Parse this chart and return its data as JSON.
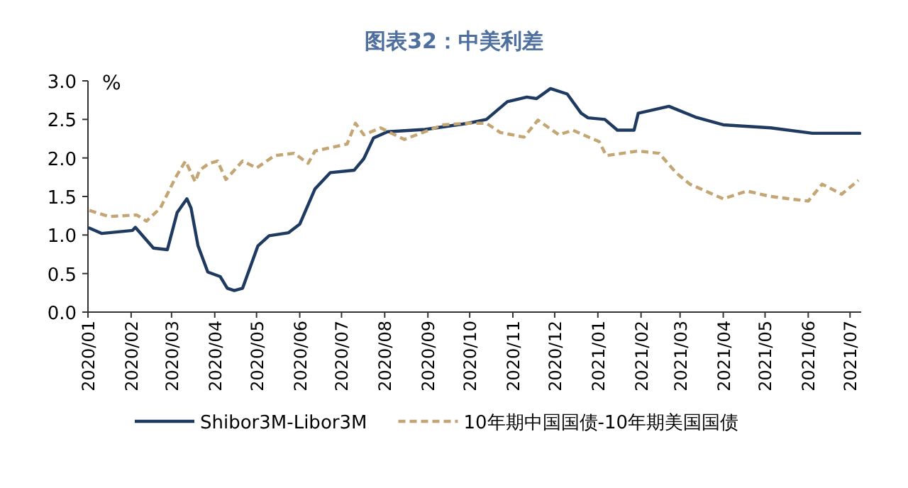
{
  "chart_data": {
    "type": "line",
    "title": "图表32：中美利差",
    "ylabel": "%",
    "legend": "bottom",
    "xlim": [
      "2020-01-01",
      "2021-07-09"
    ],
    "ylim": [
      0,
      3
    ],
    "yticks": [
      {
        "value": 0,
        "label": "0.0"
      },
      {
        "value": 0.5,
        "label": "0.5"
      },
      {
        "value": 1,
        "label": "1.0"
      },
      {
        "value": 1.5,
        "label": "1.5"
      },
      {
        "value": 2,
        "label": "2.0"
      },
      {
        "value": 2.5,
        "label": "2.5"
      },
      {
        "value": 3,
        "label": "3.0"
      }
    ],
    "xticks": [
      {
        "value": "2020-01",
        "label": "2020/01"
      },
      {
        "value": "2020-02",
        "label": "2020/02"
      },
      {
        "value": "2020-03",
        "label": "2020/03"
      },
      {
        "value": "2020-04",
        "label": "2020/04"
      },
      {
        "value": "2020-05",
        "label": "2020/05"
      },
      {
        "value": "2020-06",
        "label": "2020/06"
      },
      {
        "value": "2020-07",
        "label": "2020/07"
      },
      {
        "value": "2020-08",
        "label": "2020/08"
      },
      {
        "value": "2020-09",
        "label": "2020/09"
      },
      {
        "value": "2020-10",
        "label": "2020/10"
      },
      {
        "value": "2020-11",
        "label": "2020/11"
      },
      {
        "value": "2020-12",
        "label": "2020/12"
      },
      {
        "value": "2021-01",
        "label": "2021/01"
      },
      {
        "value": "2021-02",
        "label": "2021/02"
      },
      {
        "value": "2021-03",
        "label": "2021/03"
      },
      {
        "value": "2021-04",
        "label": "2021/04"
      },
      {
        "value": "2021-05",
        "label": "2021/05"
      },
      {
        "value": "2021-06",
        "label": "2021/06"
      },
      {
        "value": "2021-07",
        "label": "2021/07"
      }
    ],
    "series": [
      {
        "name": "Shibor3M-Libor3M",
        "color": "#1f3a60",
        "line_style": "solid",
        "x": [
          "2020-01-02",
          "2020-01-11",
          "2020-02-02",
          "2020-02-04",
          "2020-02-17",
          "2020-02-27",
          "2020-03-05",
          "2020-03-12",
          "2020-03-15",
          "2020-03-20",
          "2020-03-27",
          "2020-04-05",
          "2020-04-10",
          "2020-04-15",
          "2020-04-21",
          "2020-05-02",
          "2020-05-10",
          "2020-05-24",
          "2020-06-01",
          "2020-06-12",
          "2020-06-23",
          "2020-07-10",
          "2020-07-17",
          "2020-07-24",
          "2020-08-03",
          "2020-08-30",
          "2020-09-30",
          "2020-10-13",
          "2020-10-28",
          "2020-11-11",
          "2020-11-18",
          "2020-11-28",
          "2020-12-10",
          "2020-12-20",
          "2020-12-25",
          "2021-01-06",
          "2021-01-15",
          "2021-01-27",
          "2021-01-30",
          "2021-02-21",
          "2021-03-12",
          "2021-04-01",
          "2021-05-05",
          "2021-06-04",
          "2021-07-08"
        ],
        "values": [
          1.09,
          1.02,
          1.06,
          1.1,
          0.83,
          0.81,
          1.29,
          1.47,
          1.35,
          0.86,
          0.52,
          0.46,
          0.31,
          0.28,
          0.31,
          0.86,
          0.99,
          1.03,
          1.14,
          1.6,
          1.81,
          1.84,
          1.99,
          2.26,
          2.34,
          2.37,
          2.45,
          2.5,
          2.73,
          2.79,
          2.77,
          2.9,
          2.83,
          2.58,
          2.52,
          2.5,
          2.36,
          2.36,
          2.58,
          2.67,
          2.53,
          2.43,
          2.39,
          2.32,
          2.32
        ]
      },
      {
        "name": "10年期中国国债-10年期美国国债",
        "color": "#c4a574",
        "line_style": "dashed",
        "x": [
          "2020-01-02",
          "2020-01-16",
          "2020-02-05",
          "2020-02-12",
          "2020-02-22",
          "2020-03-04",
          "2020-03-11",
          "2020-03-18",
          "2020-03-21",
          "2020-03-28",
          "2020-04-03",
          "2020-04-09",
          "2020-04-21",
          "2020-05-01",
          "2020-05-14",
          "2020-05-28",
          "2020-06-07",
          "2020-06-12",
          "2020-07-05",
          "2020-07-11",
          "2020-07-17",
          "2020-07-29",
          "2020-08-15",
          "2020-09-12",
          "2020-09-30",
          "2020-10-13",
          "2020-10-23",
          "2020-11-09",
          "2020-11-19",
          "2020-12-04",
          "2020-12-14",
          "2021-01-02",
          "2021-01-07",
          "2021-01-30",
          "2021-02-14",
          "2021-02-26",
          "2021-03-08",
          "2021-04-01",
          "2021-04-18",
          "2021-05-05",
          "2021-06-01",
          "2021-06-11",
          "2021-06-25",
          "2021-07-07"
        ],
        "values": [
          1.32,
          1.24,
          1.26,
          1.18,
          1.35,
          1.75,
          1.96,
          1.69,
          1.84,
          1.93,
          1.96,
          1.72,
          1.96,
          1.87,
          2.03,
          2.06,
          1.93,
          2.09,
          2.18,
          2.45,
          2.3,
          2.39,
          2.24,
          2.43,
          2.45,
          2.45,
          2.33,
          2.27,
          2.49,
          2.3,
          2.36,
          2.21,
          2.03,
          2.09,
          2.06,
          1.81,
          1.66,
          1.47,
          1.57,
          1.5,
          1.44,
          1.66,
          1.53,
          1.71
        ]
      }
    ]
  }
}
